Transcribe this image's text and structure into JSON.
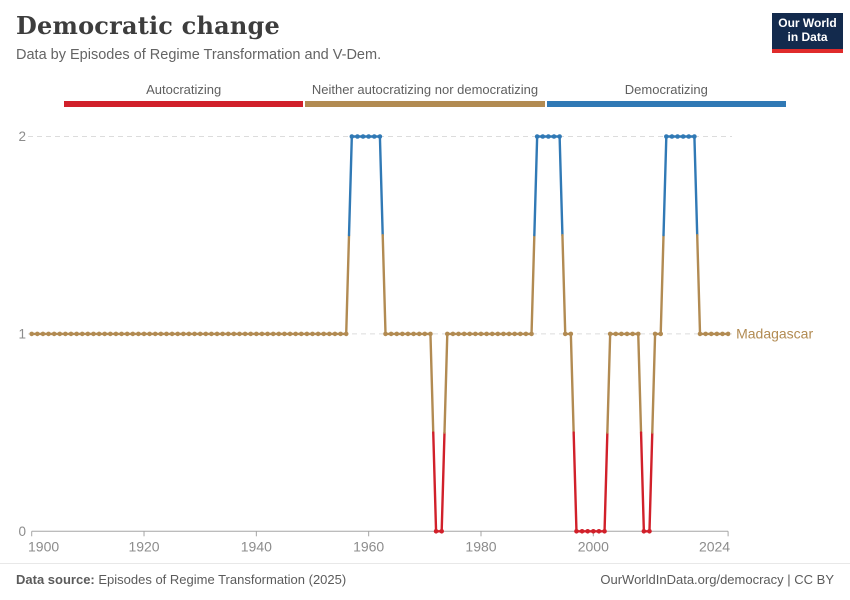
{
  "header": {
    "title": "Democratic change",
    "subtitle": "Data by Episodes of Regime Transformation and V-Dem."
  },
  "logo": {
    "line1": "Our World",
    "line2": "in Data"
  },
  "legend": {
    "items": [
      {
        "label": "Autocratizing",
        "color": "#d1202a"
      },
      {
        "label": "Neither autocratizing nor democratizing",
        "color": "#b28b52"
      },
      {
        "label": "Democratizing",
        "color": "#3079b5"
      }
    ]
  },
  "chart_data": {
    "type": "line",
    "entity": "Madagascar",
    "entity_color": "#b28b52",
    "xlim": [
      1900,
      2024
    ],
    "ylim": [
      0,
      2
    ],
    "x_ticks": [
      1900,
      1920,
      1940,
      1960,
      1980,
      2000,
      2024
    ],
    "y_ticks": [
      0,
      1,
      2
    ],
    "grid": "dashed horizontal at y=1 and y=2",
    "value_labels": {
      "0": "Autocratizing",
      "1": "Neither autocratizing nor democratizing",
      "2": "Democratizing"
    },
    "value_colors": {
      "0": "#d1202a",
      "1": "#b28b52",
      "2": "#3079b5"
    },
    "segments": [
      {
        "start": 1900,
        "end": 1956,
        "value": 1
      },
      {
        "start": 1957,
        "end": 1962,
        "value": 2
      },
      {
        "start": 1963,
        "end": 1971,
        "value": 1
      },
      {
        "start": 1972,
        "end": 1973,
        "value": 0
      },
      {
        "start": 1974,
        "end": 1989,
        "value": 1
      },
      {
        "start": 1990,
        "end": 1994,
        "value": 2
      },
      {
        "start": 1995,
        "end": 1996,
        "value": 1
      },
      {
        "start": 1997,
        "end": 2002,
        "value": 0
      },
      {
        "start": 2003,
        "end": 2008,
        "value": 1
      },
      {
        "start": 2009,
        "end": 2010,
        "value": 0
      },
      {
        "start": 2011,
        "end": 2012,
        "value": 1
      },
      {
        "start": 2013,
        "end": 2018,
        "value": 2
      },
      {
        "start": 2019,
        "end": 2024,
        "value": 1
      }
    ]
  },
  "footer": {
    "source_label": "Data source:",
    "source_text": " Episodes of Regime Transformation (2025)",
    "link": "OurWorldInData.org/democracy",
    "separator": " | ",
    "license": "CC BY"
  }
}
